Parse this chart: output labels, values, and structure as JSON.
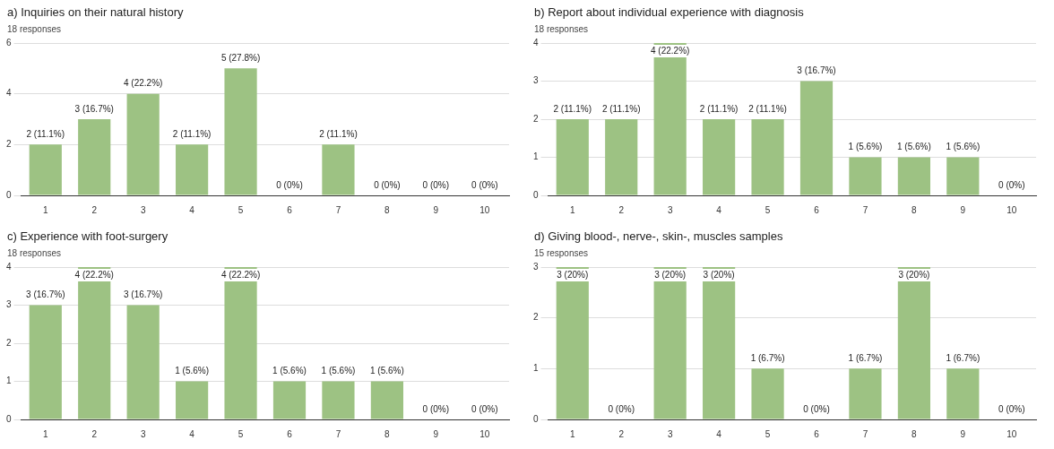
{
  "chart_data": [
    {
      "type": "bar",
      "title": "a) Inquiries on their natural history",
      "subtitle": "18 responses",
      "categories": [
        "1",
        "2",
        "3",
        "4",
        "5",
        "6",
        "7",
        "8",
        "9",
        "10"
      ],
      "values": [
        2,
        3,
        4,
        2,
        5,
        0,
        2,
        0,
        0,
        0
      ],
      "value_labels": [
        "2 (11.1%)",
        "3 (16.7%)",
        "4 (22.2%)",
        "2 (11.1%)",
        "5 (27.8%)",
        "0 (0%)",
        "2 (11.1%)",
        "0 (0%)",
        "0 (0%)",
        "0 (0%)"
      ],
      "color": "#9dc283",
      "ylim": [
        0,
        6
      ],
      "yticks": [
        0,
        2,
        4,
        6
      ],
      "grid": "y"
    },
    {
      "type": "bar",
      "title": "b) Report about individual experience with diagnosis",
      "subtitle": "18 responses",
      "categories": [
        "1",
        "2",
        "3",
        "4",
        "5",
        "6",
        "7",
        "8",
        "9",
        "10"
      ],
      "values": [
        2,
        2,
        4,
        2,
        2,
        3,
        1,
        1,
        1,
        0
      ],
      "value_labels": [
        "2 (11.1%)",
        "2 (11.1%)",
        "4 (22.2%)",
        "2 (11.1%)",
        "2 (11.1%)",
        "3 (16.7%)",
        "1 (5.6%)",
        "1 (5.6%)",
        "1 (5.6%)",
        "0 (0%)"
      ],
      "color": "#9dc283",
      "ylim": [
        0,
        4
      ],
      "yticks": [
        0,
        1,
        2,
        3,
        4
      ],
      "grid": "y"
    },
    {
      "type": "bar",
      "title": "c) Experience with foot-surgery",
      "subtitle": "18 responses",
      "categories": [
        "1",
        "2",
        "3",
        "4",
        "5",
        "6",
        "7",
        "8",
        "9",
        "10"
      ],
      "values": [
        3,
        4,
        3,
        1,
        4,
        1,
        1,
        1,
        0,
        0
      ],
      "value_labels": [
        "3 (16.7%)",
        "4 (22.2%)",
        "3 (16.7%)",
        "1 (5.6%)",
        "4 (22.2%)",
        "1 (5.6%)",
        "1 (5.6%)",
        "1 (5.6%)",
        "0 (0%)",
        "0 (0%)"
      ],
      "color": "#9dc283",
      "ylim": [
        0,
        4
      ],
      "yticks": [
        0,
        1,
        2,
        3,
        4
      ],
      "grid": "y"
    },
    {
      "type": "bar",
      "title": "d) Giving blood-, nerve-, skin-, muscles samples",
      "subtitle": "15 responses",
      "categories": [
        "1",
        "2",
        "3",
        "4",
        "5",
        "6",
        "7",
        "8",
        "9",
        "10"
      ],
      "values": [
        3,
        0,
        3,
        3,
        1,
        0,
        1,
        3,
        1,
        0
      ],
      "value_labels": [
        "3 (20%)",
        "0 (0%)",
        "3 (20%)",
        "3 (20%)",
        "1 (6.7%)",
        "0 (0%)",
        "1 (6.7%)",
        "3 (20%)",
        "1 (6.7%)",
        "0 (0%)"
      ],
      "color": "#9dc283",
      "ylim": [
        0,
        3
      ],
      "yticks": [
        0,
        1,
        2,
        3
      ],
      "grid": "y"
    }
  ]
}
